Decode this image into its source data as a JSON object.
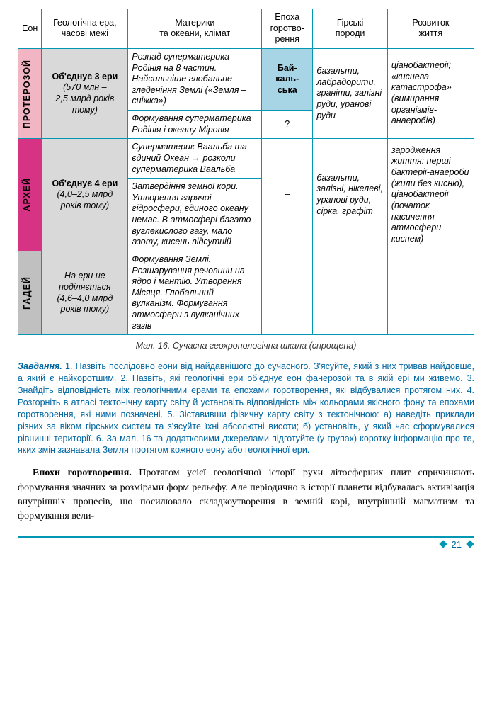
{
  "headers": {
    "eon": "Еон",
    "era": "Геологічна ера,\nчасові межі",
    "climate": "Материки\nта океани, клімат",
    "epoch": "Епоха\nгоротво-\nрення",
    "rocks": "Гірські\nпороди",
    "life": "Розвиток\nжиття"
  },
  "rows": {
    "proto": {
      "eon": "ПРОТЕРОЗОЙ",
      "era_bold": "Об'єднує 3 ери",
      "era_time": "(570 млн –\n2,5 млрд років\nтому)",
      "climate1": "Розпад суперматерика Родінія на 8 частин. Найсильніше глобальне зледеніння Землі («Земля – сніжка»)",
      "epoch1a": "Бай-",
      "epoch1b": "каль-",
      "epoch1c": "ська",
      "rocks1": "базальти, лабрадорити, граніти, залізні руди, уранові руди",
      "life1": "ціанобактерії; «киснева катастрофа» (вимирання організмів-анаеробів)",
      "climate2": "Формування суперматерика Родінія і океану Міровія",
      "epoch2": "?"
    },
    "archey": {
      "eon": "АРХЕЙ",
      "era_bold": "Об'єднує 4 ери",
      "era_time": "(4,0–2,5 млрд\nроків тому)",
      "climate1": "Суперматерик Ваальба та єдиний Океан → розколи суперматерика Ваальба",
      "climate2": "Затвердіння земної кори. Утворення гарячої гідросфери, єдиного океану немає. В атмосфері багато вуглекислого газу, мало азоту, кисень відсутній",
      "epoch": "–",
      "rocks": "базальти, залізні, нікелеві, уранові руди, сірка, графіт",
      "life": "зародження життя: перші бактерії-анаероби (жили без кисню), ціанобактерії (початок насичення атмосфери киснем)"
    },
    "hadey": {
      "eon": "ГАДЕЙ",
      "era_top": "На ери не\nподіляється",
      "era_time": "(4,6–4,0 млрд\nроків тому)",
      "climate": "Формування Землі. Розшарування речовини на ядро і мантію. Утворення Місяця. Глобальний вулканізм. Формування атмосфери з вулканічних газів",
      "epoch": "–",
      "rocks": "–",
      "life": "–"
    }
  },
  "caption": "Мал. 16. Сучасна геохронологічна шкала (спрощена)",
  "task": {
    "title": "Завдання.",
    "text": " 1. Назвіть послідовно еони від найдавнішого до сучасного. З'ясуйте, який з них тривав найдовше, а який є найкоротшим. 2. Назвіть, які геологічні ери об'єднує еон фанерозой та в якій ері ми живемо. 3. Знайдіть відповідність між геологічними ерами та епохами горотворення, які відбувалися протягом них. 4. Розгорніть в атласі тектонічну карту світу й установіть відповідність між кольорами якісного фону та епохами горотворення, які ними позначені. 5. Зіставивши фізичну карту світу з тектонічною: а) наведіть приклади різних за віком гірських систем та з'ясуйте їхні абсолютні висоти; б) установіть, у який час сформувалися рівнинні території. 6. За мал. 16 та додатковими джерелами підготуйте (у групах) коротку інформацію про те, яких змін зазнавала Земля протягом кожного еону або геологічної ери."
  },
  "body": {
    "para1": "Епохи горотворення. Протягом усієї геологічної історії рухи літосферних плит спричиняють формування значних за розмірами форм рельєфу. Але періодично в історії планети відбувалась активізація внутрішніх процесів, що посилювало складкоутворення в земній корі, внутрішній магматизм та формування вели-"
  },
  "page": "21",
  "colors": {
    "border": "#0097b2",
    "proto_bg": "#f2b5c4",
    "archey_bg": "#d63384",
    "hadey_bg": "#c0c0c0",
    "era_gray": "#d9d9d9",
    "baikal_bg": "#a8d5e5",
    "task_color": "#0066a0"
  }
}
